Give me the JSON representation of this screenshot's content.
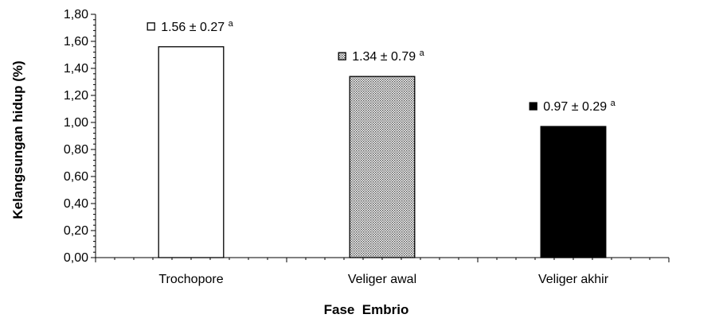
{
  "chart_data": {
    "type": "bar",
    "xlabel": "Fase  Embrio",
    "ylabel": "Kelangsungan hidup (%)",
    "ylim": [
      0,
      1.8
    ],
    "y_major_step": 0.2,
    "y_minor_step": 0.04,
    "y_tick_labels": [
      "0,00",
      "0,20",
      "0,40",
      "0,60",
      "0,80",
      "1,00",
      "1,20",
      "1,40",
      "1,60",
      "1,80"
    ],
    "grid": false,
    "legend": "none",
    "categories": [
      "Trochopore",
      "Veliger awal",
      "Veliger akhir"
    ],
    "values": [
      1.56,
      1.34,
      0.97
    ],
    "data_labels": [
      {
        "text": "1.56 ± 0.27",
        "superscript": "a"
      },
      {
        "text": "1.34 ± 0.79",
        "superscript": "a"
      },
      {
        "text": "0.97 ± 0.29",
        "superscript": "a"
      }
    ],
    "bar_fills": [
      "white",
      "dotted-gray",
      "black"
    ],
    "colors": {
      "axis": "#000000",
      "bar_stroke": "#000000",
      "solid": "#000000",
      "open": "#ffffff"
    }
  }
}
